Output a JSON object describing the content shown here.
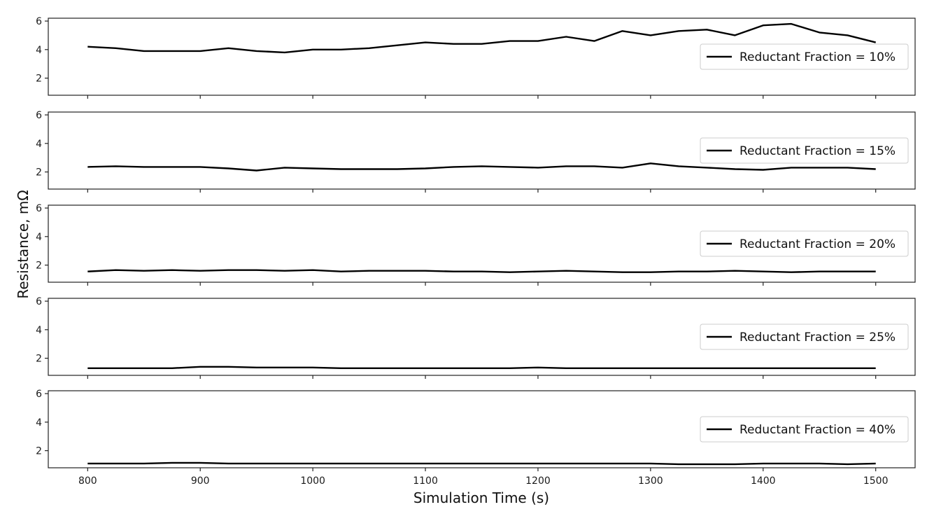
{
  "chart_data": {
    "type": "line",
    "xlabel": "Simulation Time (s)",
    "ylabel": "Resistance, mΩ",
    "xlim": [
      765,
      1535
    ],
    "xticks": [
      800,
      900,
      1000,
      1100,
      1200,
      1300,
      1400,
      1500
    ],
    "ylim": [
      0.8,
      6.2
    ],
    "yticks": [
      2,
      4,
      6
    ],
    "legend_position": "right",
    "grid": false,
    "line_color": "#000000",
    "x": [
      800,
      825,
      850,
      875,
      900,
      925,
      950,
      975,
      1000,
      1025,
      1050,
      1075,
      1100,
      1125,
      1150,
      1175,
      1200,
      1225,
      1250,
      1275,
      1300,
      1325,
      1350,
      1375,
      1400,
      1425,
      1450,
      1475,
      1500
    ],
    "series": [
      {
        "name": "Reductant Fraction = 10%",
        "values": [
          4.2,
          4.1,
          3.9,
          3.9,
          3.9,
          4.1,
          3.9,
          3.8,
          4.0,
          4.0,
          4.1,
          4.3,
          4.5,
          4.4,
          4.4,
          4.6,
          4.6,
          4.9,
          4.6,
          5.3,
          5.0,
          5.3,
          5.4,
          5.0,
          5.7,
          5.8,
          5.2,
          5.0,
          4.5
        ]
      },
      {
        "name": "Reductant Fraction = 15%",
        "values": [
          2.35,
          2.4,
          2.35,
          2.35,
          2.35,
          2.25,
          2.1,
          2.3,
          2.25,
          2.2,
          2.2,
          2.2,
          2.25,
          2.35,
          2.4,
          2.35,
          2.3,
          2.4,
          2.4,
          2.3,
          2.6,
          2.4,
          2.3,
          2.2,
          2.15,
          2.3,
          2.3,
          2.3,
          2.2
        ]
      },
      {
        "name": "Reductant Fraction = 20%",
        "values": [
          1.55,
          1.65,
          1.6,
          1.65,
          1.6,
          1.65,
          1.65,
          1.6,
          1.65,
          1.55,
          1.6,
          1.6,
          1.6,
          1.55,
          1.55,
          1.5,
          1.55,
          1.6,
          1.55,
          1.5,
          1.5,
          1.55,
          1.55,
          1.6,
          1.55,
          1.5,
          1.55,
          1.55,
          1.55
        ]
      },
      {
        "name": "Reductant Fraction = 25%",
        "values": [
          1.3,
          1.3,
          1.3,
          1.3,
          1.4,
          1.4,
          1.35,
          1.35,
          1.35,
          1.3,
          1.3,
          1.3,
          1.3,
          1.3,
          1.3,
          1.3,
          1.35,
          1.3,
          1.3,
          1.3,
          1.3,
          1.3,
          1.3,
          1.3,
          1.3,
          1.3,
          1.3,
          1.3,
          1.3
        ]
      },
      {
        "name": "Reductant Fraction = 40%",
        "values": [
          1.1,
          1.1,
          1.1,
          1.15,
          1.15,
          1.1,
          1.1,
          1.1,
          1.1,
          1.1,
          1.1,
          1.1,
          1.1,
          1.1,
          1.1,
          1.1,
          1.1,
          1.1,
          1.1,
          1.1,
          1.1,
          1.05,
          1.05,
          1.05,
          1.1,
          1.1,
          1.1,
          1.05,
          1.1
        ]
      }
    ]
  }
}
